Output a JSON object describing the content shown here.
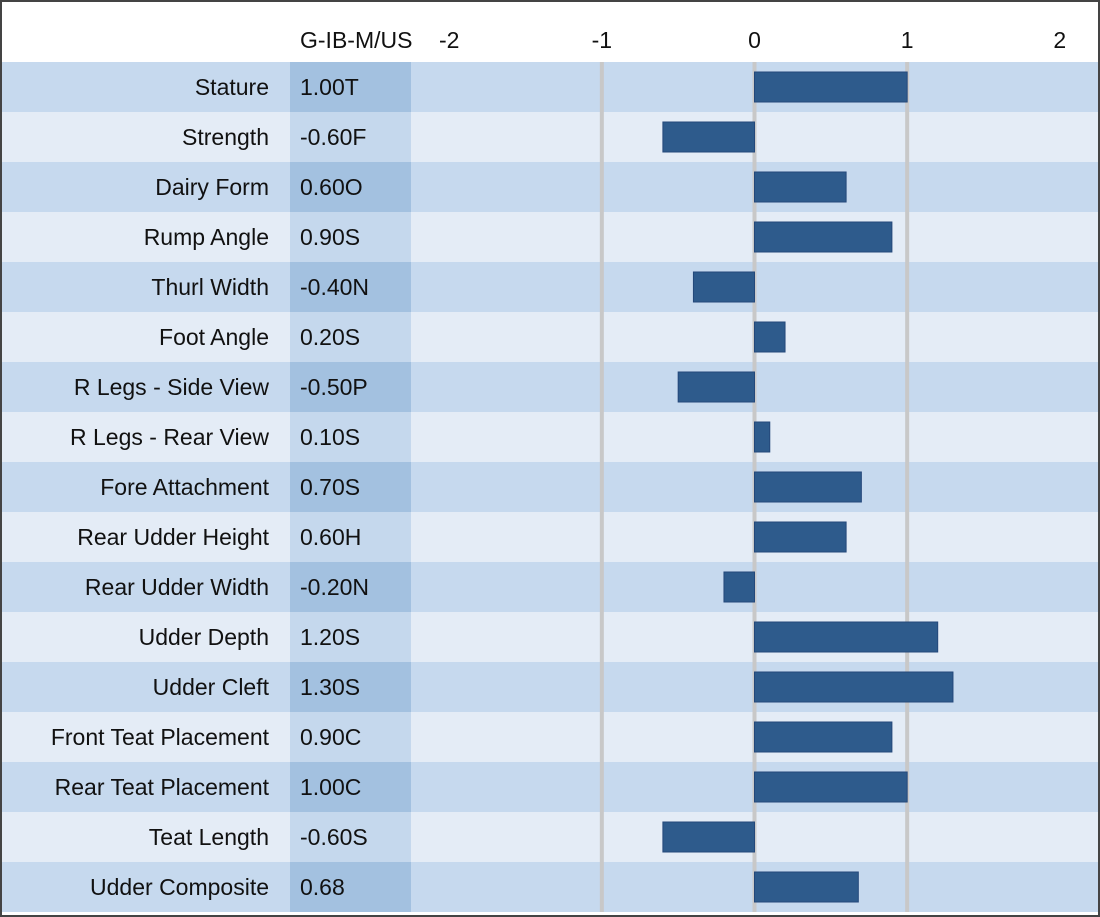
{
  "chart_data": {
    "type": "bar",
    "orientation": "horizontal",
    "column_header": "G-IB-M/US",
    "categories": [
      "Stature",
      "Strength",
      "Dairy Form",
      "Rump Angle",
      "Thurl Width",
      "Foot Angle",
      "R Legs - Side View",
      "R Legs - Rear View",
      "Fore Attachment",
      "Rear Udder Height",
      "Rear Udder Width",
      "Udder Depth",
      "Udder Cleft",
      "Front Teat Placement",
      "Rear Teat Placement",
      "Teat Length",
      "Udder Composite"
    ],
    "values": [
      1.0,
      -0.6,
      0.6,
      0.9,
      -0.4,
      0.2,
      -0.5,
      0.1,
      0.7,
      0.6,
      -0.2,
      1.2,
      1.3,
      0.9,
      1.0,
      -0.6,
      0.68
    ],
    "value_labels": [
      "1.00T",
      "-0.60F",
      "0.60O",
      "0.90S",
      "-0.40N",
      "0.20S",
      "-0.50P",
      "0.10S",
      "0.70S",
      "0.60H",
      "-0.20N",
      "1.20S",
      "1.30S",
      "0.90C",
      "1.00C",
      "-0.60S",
      "0.68"
    ],
    "color": "#2e5b8c",
    "xlim": [
      -2.25,
      2.25
    ],
    "xticks": [
      -2,
      -1,
      0,
      1,
      2
    ],
    "grid": true
  }
}
